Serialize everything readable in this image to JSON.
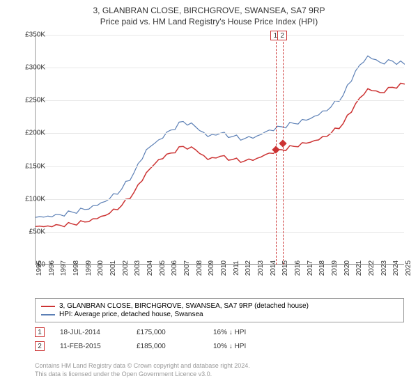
{
  "title": {
    "main": "3, GLANBRAN CLOSE, BIRCHGROVE, SWANSEA, SA7 9RP",
    "sub": "Price paid vs. HM Land Registry's House Price Index (HPI)"
  },
  "chart": {
    "type": "line",
    "ylim": [
      0,
      350000
    ],
    "ytick_step": 50000,
    "y_labels": [
      "£0",
      "£50K",
      "£100K",
      "£150K",
      "£200K",
      "£250K",
      "£300K",
      "£350K"
    ],
    "x_years": [
      1995,
      1996,
      1997,
      1998,
      1999,
      2000,
      2001,
      2002,
      2003,
      2004,
      2005,
      2006,
      2007,
      2008,
      2009,
      2010,
      2011,
      2012,
      2013,
      2014,
      2015,
      2016,
      2017,
      2018,
      2019,
      2020,
      2021,
      2022,
      2023,
      2024,
      2025
    ],
    "background_color": "#ffffff",
    "grid_color": "#e8e8e8",
    "axis_color": "#999999",
    "series": {
      "price_paid": {
        "color": "#cc3333",
        "label": "3, GLANBRAN CLOSE, BIRCHGROVE, SWANSEA, SA7 9RP (detached house)",
        "line_width": 1.5,
        "data": [
          58000,
          59000,
          60000,
          62000,
          65000,
          70000,
          78000,
          90000,
          110000,
          140000,
          160000,
          170000,
          180000,
          175000,
          160000,
          165000,
          160000,
          158000,
          162000,
          170000,
          175000,
          180000,
          185000,
          190000,
          200000,
          215000,
          245000,
          268000,
          262000,
          270000,
          275000
        ]
      },
      "hpi": {
        "color": "#5b7fb5",
        "label": "HPI: Average price, detached house, Swansea",
        "line_width": 1.2,
        "data": [
          72000,
          74000,
          76000,
          80000,
          84000,
          90000,
          100000,
          115000,
          140000,
          175000,
          190000,
          205000,
          218000,
          210000,
          195000,
          200000,
          195000,
          192000,
          196000,
          205000,
          210000,
          215000,
          220000,
          228000,
          240000,
          258000,
          295000,
          318000,
          308000,
          310000,
          305000
        ]
      }
    },
    "sales": [
      {
        "marker": "1",
        "year": 2014.55,
        "price": 175000
      },
      {
        "marker": "2",
        "year": 2015.11,
        "price": 185000
      }
    ]
  },
  "legend": {
    "items": [
      {
        "color": "#cc3333",
        "label_key": "chart.series.price_paid.label"
      },
      {
        "color": "#5b7fb5",
        "label_key": "chart.series.hpi.label"
      }
    ]
  },
  "table": {
    "rows": [
      {
        "marker": "1",
        "date": "18-JUL-2014",
        "price": "£175,000",
        "delta": "16% ↓ HPI"
      },
      {
        "marker": "2",
        "date": "11-FEB-2015",
        "price": "£185,000",
        "delta": "10% ↓ HPI"
      }
    ]
  },
  "footer": {
    "line1": "Contains HM Land Registry data © Crown copyright and database right 2024.",
    "line2": "This data is licensed under the Open Government Licence v3.0."
  }
}
